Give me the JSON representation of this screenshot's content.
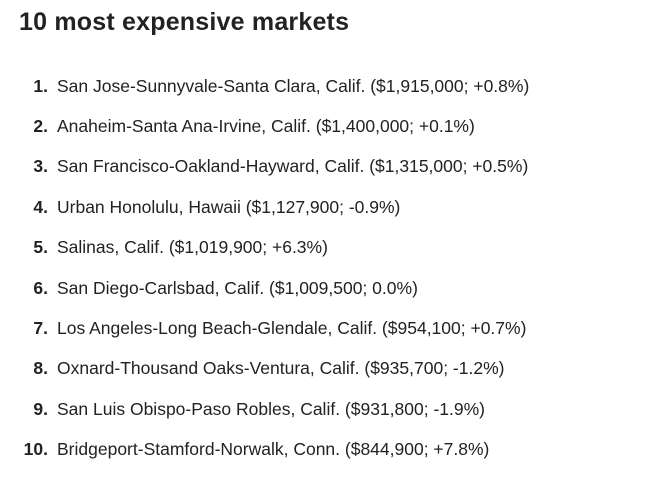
{
  "title": "10 most expensive markets",
  "markets": [
    {
      "rank": "1.",
      "text": "San Jose-Sunnyvale-Santa Clara, Calif. ($1,915,000; +0.8%)"
    },
    {
      "rank": "2.",
      "text": "Anaheim-Santa Ana-Irvine, Calif. ($1,400,000; +0.1%)"
    },
    {
      "rank": "3.",
      "text": "San Francisco-Oakland-Hayward, Calif. ($1,315,000; +0.5%)"
    },
    {
      "rank": "4.",
      "text": "Urban Honolulu, Hawaii ($1,127,900; -0.9%)"
    },
    {
      "rank": "5.",
      "text": "Salinas, Calif. ($1,019,900; +6.3%)"
    },
    {
      "rank": "6.",
      "text": "San Diego-Carlsbad, Calif. ($1,009,500; 0.0%)"
    },
    {
      "rank": "7.",
      "text": "Los Angeles-Long Beach-Glendale, Calif. ($954,100; +0.7%)"
    },
    {
      "rank": "8.",
      "text": "Oxnard-Thousand Oaks-Ventura, Calif. ($935,700; -1.2%)"
    },
    {
      "rank": "9.",
      "text": "San Luis Obispo-Paso Robles, Calif. ($931,800; -1.9%)"
    },
    {
      "rank": "10.",
      "text": "Bridgeport-Stamford-Norwalk, Conn. ($844,900; +7.8%)"
    }
  ]
}
